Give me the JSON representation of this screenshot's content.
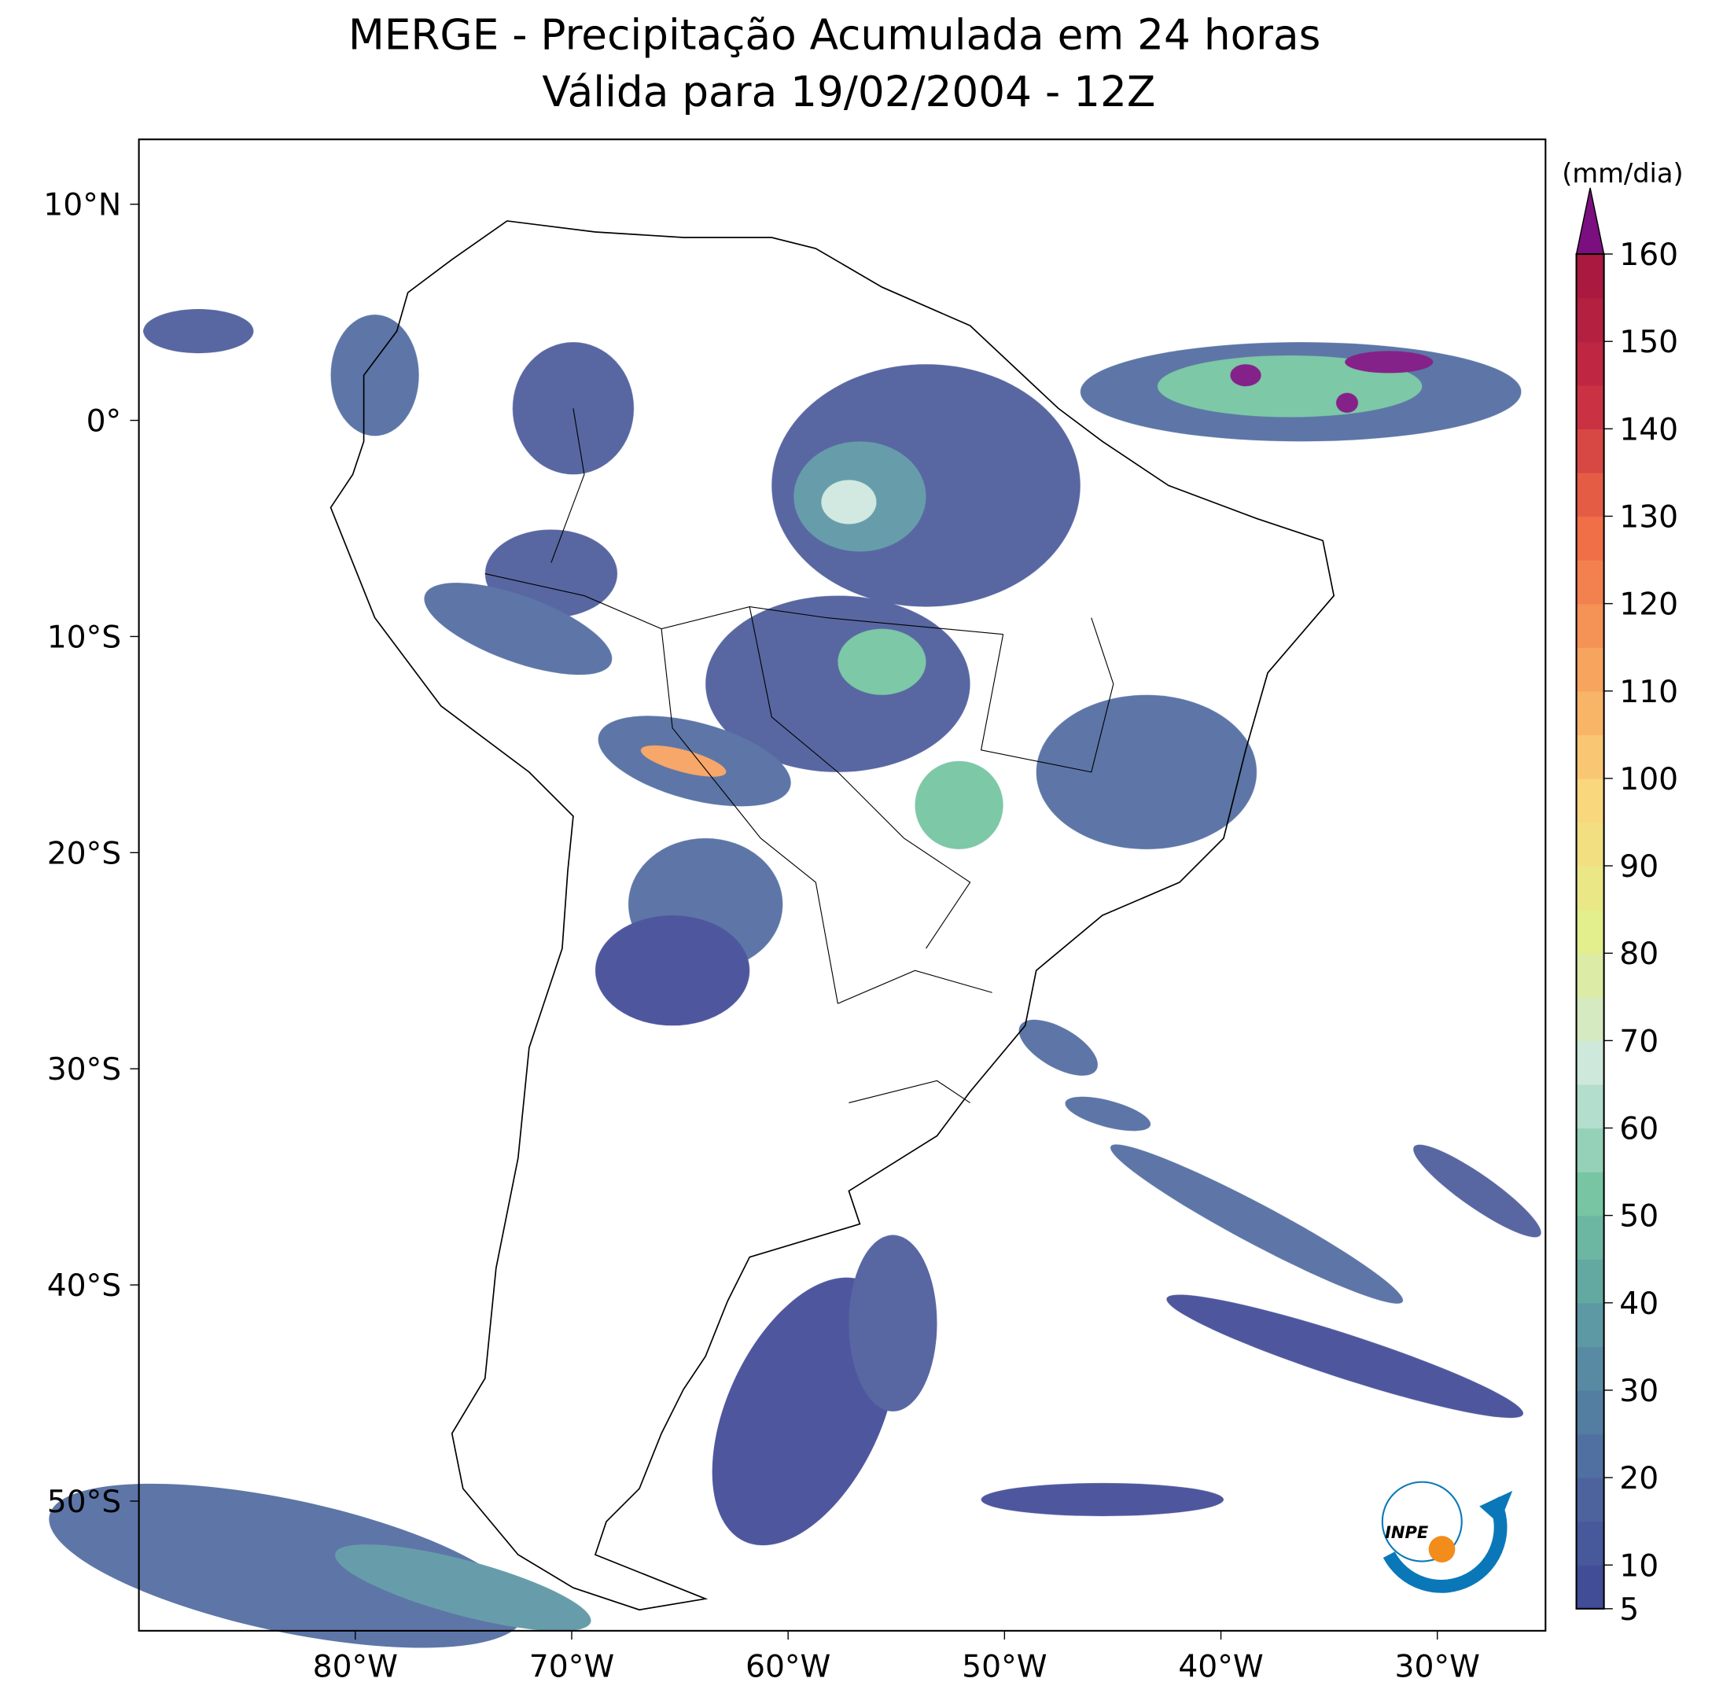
{
  "map": {
    "title": "MERGE - Precipitação Acumulada em 24 horas",
    "subtitle": "Válida para 19/02/2004 - 12Z",
    "xlim": [
      -90,
      -25
    ],
    "ylim": [
      -56,
      13
    ],
    "xticks": [
      {
        "value": -80,
        "label": "80°W"
      },
      {
        "value": -70,
        "label": "70°W"
      },
      {
        "value": -60,
        "label": "60°W"
      },
      {
        "value": -50,
        "label": "50°W"
      },
      {
        "value": -40,
        "label": "40°W"
      },
      {
        "value": -30,
        "label": "30°W"
      }
    ],
    "yticks": [
      {
        "value": 10,
        "label": "10°N"
      },
      {
        "value": 0,
        "label": "0°"
      },
      {
        "value": -10,
        "label": "10°S"
      },
      {
        "value": -20,
        "label": "20°S"
      },
      {
        "value": -30,
        "label": "30°S"
      },
      {
        "value": -40,
        "label": "40°S"
      },
      {
        "value": -50,
        "label": "50°S"
      }
    ],
    "logo": "INPE"
  },
  "colorbar": {
    "unit": "(mm/dia)",
    "lim": [
      5,
      160
    ],
    "level_step": 5,
    "ticks": [
      5,
      10,
      20,
      30,
      40,
      50,
      60,
      70,
      80,
      90,
      100,
      110,
      120,
      130,
      140,
      150,
      160
    ],
    "colors": [
      "#3f4896",
      "#4f6aa0",
      "#5a95a4",
      "#72c3a0",
      "#cde8de",
      "#e3ee8c",
      "#fad77c",
      "#f7a05c",
      "#ef6a45",
      "#c42a43",
      "#a5163e"
    ],
    "extend_color": "#7b0f7f"
  }
}
